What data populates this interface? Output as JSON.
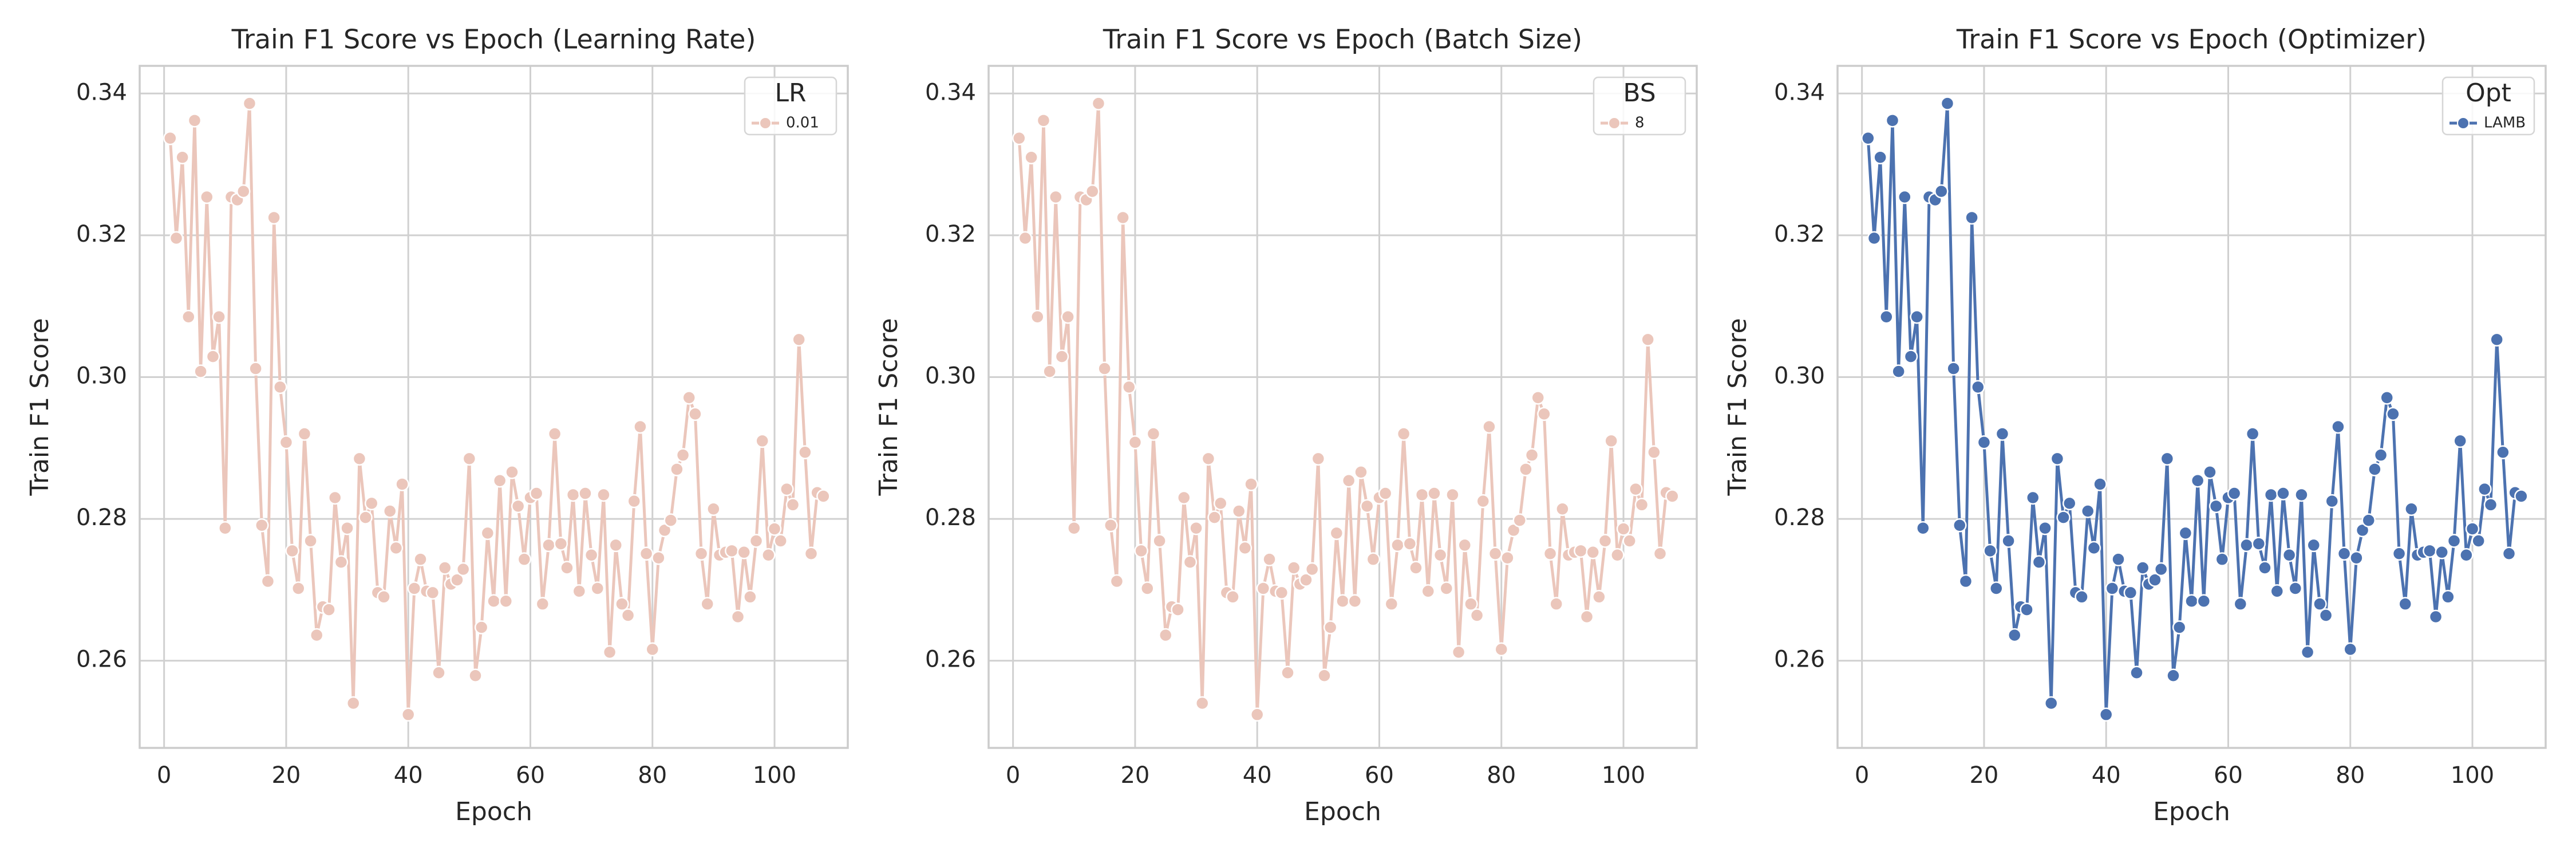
{
  "chart_data": [
    {
      "type": "line",
      "title": "Train F1 Score vs Epoch (Learning Rate)",
      "xlabel": "Epoch",
      "ylabel": "Train F1 Score",
      "legend_title": "LR",
      "legend": "upper right",
      "grid": true,
      "xlim": [
        -4,
        112
      ],
      "ylim": [
        0.2477,
        0.3439
      ],
      "xticks": [
        0,
        20,
        40,
        60,
        80,
        100
      ],
      "yticks": [
        0.26,
        0.28,
        {
          "value": 0.3,
          "label": "0.30"
        },
        0.32,
        0.34
      ],
      "x": [
        1,
        2,
        3,
        4,
        5,
        6,
        7,
        8,
        9,
        10,
        11,
        12,
        13,
        14,
        15,
        16,
        17,
        18,
        19,
        20,
        21,
        22,
        23,
        24,
        25,
        26,
        27,
        28,
        29,
        30,
        31,
        32,
        33,
        34,
        35,
        36,
        37,
        38,
        39,
        40,
        41,
        42,
        43,
        44,
        45,
        46,
        47,
        48,
        49,
        50,
        51,
        52,
        53,
        54,
        55,
        56,
        57,
        58,
        59,
        60,
        61,
        62,
        63,
        64,
        65,
        66,
        67,
        68,
        69,
        70,
        71,
        72,
        73,
        74,
        75,
        76,
        77,
        78,
        79,
        80,
        81,
        82,
        83,
        84,
        85,
        86,
        87,
        88,
        89,
        90,
        91,
        92,
        93,
        94,
        95,
        96,
        97,
        98,
        99,
        100,
        101,
        102,
        103,
        104,
        105,
        106,
        107,
        108
      ],
      "series": [
        {
          "name": "0.01",
          "color": "#ebc6bb",
          "values": [
            0.3337,
            0.3196,
            0.331,
            0.3085,
            0.3362,
            0.3008,
            0.3254,
            0.3029,
            0.3085,
            0.2787,
            0.3254,
            0.325,
            0.3262,
            0.3386,
            0.3012,
            0.2791,
            0.2712,
            0.3225,
            0.2986,
            0.2908,
            0.2755,
            0.2702,
            0.292,
            0.2769,
            0.2636,
            0.2676,
            0.2672,
            0.283,
            0.2739,
            0.2787,
            0.254,
            0.2885,
            0.2802,
            0.2822,
            0.2696,
            0.269,
            0.2811,
            0.2759,
            0.2849,
            0.2524,
            0.2702,
            0.2743,
            0.2698,
            0.2696,
            0.2583,
            0.2731,
            0.2708,
            0.2714,
            0.2729,
            0.2885,
            0.2579,
            0.2647,
            0.278,
            0.2684,
            0.2854,
            0.2684,
            0.2866,
            0.2818,
            0.2743,
            0.283,
            0.2836,
            0.268,
            0.2763,
            0.292,
            0.2765,
            0.2731,
            0.2834,
            0.2698,
            0.2836,
            0.2749,
            0.2702,
            0.2834,
            0.2612,
            0.2763,
            0.268,
            0.2664,
            0.2825,
            0.293,
            0.2751,
            0.2616,
            0.2745,
            0.2784,
            0.2798,
            0.287,
            0.289,
            0.2971,
            0.2948,
            0.2751,
            0.268,
            0.2814,
            0.2749,
            0.2753,
            0.2755,
            0.2662,
            0.2753,
            0.269,
            0.2769,
            0.291,
            0.2749,
            0.2786,
            0.2769,
            0.2842,
            0.282,
            0.3053,
            0.2894,
            0.2751,
            0.2837,
            0.2832
          ]
        }
      ]
    },
    {
      "type": "line",
      "title": "Train F1 Score vs Epoch (Batch Size)",
      "xlabel": "Epoch",
      "ylabel": "Train F1 Score",
      "legend_title": "BS",
      "legend": "upper right",
      "grid": true,
      "xlim": [
        -4,
        112
      ],
      "ylim": [
        0.2477,
        0.3439
      ],
      "xticks": [
        0,
        20,
        40,
        60,
        80,
        100
      ],
      "yticks": [
        0.26,
        0.28,
        {
          "value": 0.3,
          "label": "0.30"
        },
        0.32,
        0.34
      ],
      "x": [
        1,
        2,
        3,
        4,
        5,
        6,
        7,
        8,
        9,
        10,
        11,
        12,
        13,
        14,
        15,
        16,
        17,
        18,
        19,
        20,
        21,
        22,
        23,
        24,
        25,
        26,
        27,
        28,
        29,
        30,
        31,
        32,
        33,
        34,
        35,
        36,
        37,
        38,
        39,
        40,
        41,
        42,
        43,
        44,
        45,
        46,
        47,
        48,
        49,
        50,
        51,
        52,
        53,
        54,
        55,
        56,
        57,
        58,
        59,
        60,
        61,
        62,
        63,
        64,
        65,
        66,
        67,
        68,
        69,
        70,
        71,
        72,
        73,
        74,
        75,
        76,
        77,
        78,
        79,
        80,
        81,
        82,
        83,
        84,
        85,
        86,
        87,
        88,
        89,
        90,
        91,
        92,
        93,
        94,
        95,
        96,
        97,
        98,
        99,
        100,
        101,
        102,
        103,
        104,
        105,
        106,
        107,
        108
      ],
      "series": [
        {
          "name": "8",
          "color": "#ebc6bb",
          "values": [
            0.3337,
            0.3196,
            0.331,
            0.3085,
            0.3362,
            0.3008,
            0.3254,
            0.3029,
            0.3085,
            0.2787,
            0.3254,
            0.325,
            0.3262,
            0.3386,
            0.3012,
            0.2791,
            0.2712,
            0.3225,
            0.2986,
            0.2908,
            0.2755,
            0.2702,
            0.292,
            0.2769,
            0.2636,
            0.2676,
            0.2672,
            0.283,
            0.2739,
            0.2787,
            0.254,
            0.2885,
            0.2802,
            0.2822,
            0.2696,
            0.269,
            0.2811,
            0.2759,
            0.2849,
            0.2524,
            0.2702,
            0.2743,
            0.2698,
            0.2696,
            0.2583,
            0.2731,
            0.2708,
            0.2714,
            0.2729,
            0.2885,
            0.2579,
            0.2647,
            0.278,
            0.2684,
            0.2854,
            0.2684,
            0.2866,
            0.2818,
            0.2743,
            0.283,
            0.2836,
            0.268,
            0.2763,
            0.292,
            0.2765,
            0.2731,
            0.2834,
            0.2698,
            0.2836,
            0.2749,
            0.2702,
            0.2834,
            0.2612,
            0.2763,
            0.268,
            0.2664,
            0.2825,
            0.293,
            0.2751,
            0.2616,
            0.2745,
            0.2784,
            0.2798,
            0.287,
            0.289,
            0.2971,
            0.2948,
            0.2751,
            0.268,
            0.2814,
            0.2749,
            0.2753,
            0.2755,
            0.2662,
            0.2753,
            0.269,
            0.2769,
            0.291,
            0.2749,
            0.2786,
            0.2769,
            0.2842,
            0.282,
            0.3053,
            0.2894,
            0.2751,
            0.2837,
            0.2832
          ]
        }
      ]
    },
    {
      "type": "line",
      "title": "Train F1 Score vs Epoch (Optimizer)",
      "xlabel": "Epoch",
      "ylabel": "Train F1 Score",
      "legend_title": "Opt",
      "legend": "upper right",
      "grid": true,
      "xlim": [
        -4,
        112
      ],
      "ylim": [
        0.2477,
        0.3439
      ],
      "xticks": [
        0,
        20,
        40,
        60,
        80,
        100
      ],
      "yticks": [
        0.26,
        0.28,
        {
          "value": 0.3,
          "label": "0.30"
        },
        0.32,
        0.34
      ],
      "x": [
        1,
        2,
        3,
        4,
        5,
        6,
        7,
        8,
        9,
        10,
        11,
        12,
        13,
        14,
        15,
        16,
        17,
        18,
        19,
        20,
        21,
        22,
        23,
        24,
        25,
        26,
        27,
        28,
        29,
        30,
        31,
        32,
        33,
        34,
        35,
        36,
        37,
        38,
        39,
        40,
        41,
        42,
        43,
        44,
        45,
        46,
        47,
        48,
        49,
        50,
        51,
        52,
        53,
        54,
        55,
        56,
        57,
        58,
        59,
        60,
        61,
        62,
        63,
        64,
        65,
        66,
        67,
        68,
        69,
        70,
        71,
        72,
        73,
        74,
        75,
        76,
        77,
        78,
        79,
        80,
        81,
        82,
        83,
        84,
        85,
        86,
        87,
        88,
        89,
        90,
        91,
        92,
        93,
        94,
        95,
        96,
        97,
        98,
        99,
        100,
        101,
        102,
        103,
        104,
        105,
        106,
        107,
        108
      ],
      "series": [
        {
          "name": "LAMB",
          "color": "#4c72b0",
          "values": [
            0.3337,
            0.3196,
            0.331,
            0.3085,
            0.3362,
            0.3008,
            0.3254,
            0.3029,
            0.3085,
            0.2787,
            0.3254,
            0.325,
            0.3262,
            0.3386,
            0.3012,
            0.2791,
            0.2712,
            0.3225,
            0.2986,
            0.2908,
            0.2755,
            0.2702,
            0.292,
            0.2769,
            0.2636,
            0.2676,
            0.2672,
            0.283,
            0.2739,
            0.2787,
            0.254,
            0.2885,
            0.2802,
            0.2822,
            0.2696,
            0.269,
            0.2811,
            0.2759,
            0.2849,
            0.2524,
            0.2702,
            0.2743,
            0.2698,
            0.2696,
            0.2583,
            0.2731,
            0.2708,
            0.2714,
            0.2729,
            0.2885,
            0.2579,
            0.2647,
            0.278,
            0.2684,
            0.2854,
            0.2684,
            0.2866,
            0.2818,
            0.2743,
            0.283,
            0.2836,
            0.268,
            0.2763,
            0.292,
            0.2765,
            0.2731,
            0.2834,
            0.2698,
            0.2836,
            0.2749,
            0.2702,
            0.2834,
            0.2612,
            0.2763,
            0.268,
            0.2664,
            0.2825,
            0.293,
            0.2751,
            0.2616,
            0.2745,
            0.2784,
            0.2798,
            0.287,
            0.289,
            0.2971,
            0.2948,
            0.2751,
            0.268,
            0.2814,
            0.2749,
            0.2753,
            0.2755,
            0.2662,
            0.2753,
            0.269,
            0.2769,
            0.291,
            0.2749,
            0.2786,
            0.2769,
            0.2842,
            0.282,
            0.3053,
            0.2894,
            0.2751,
            0.2837,
            0.2832
          ]
        }
      ]
    }
  ]
}
